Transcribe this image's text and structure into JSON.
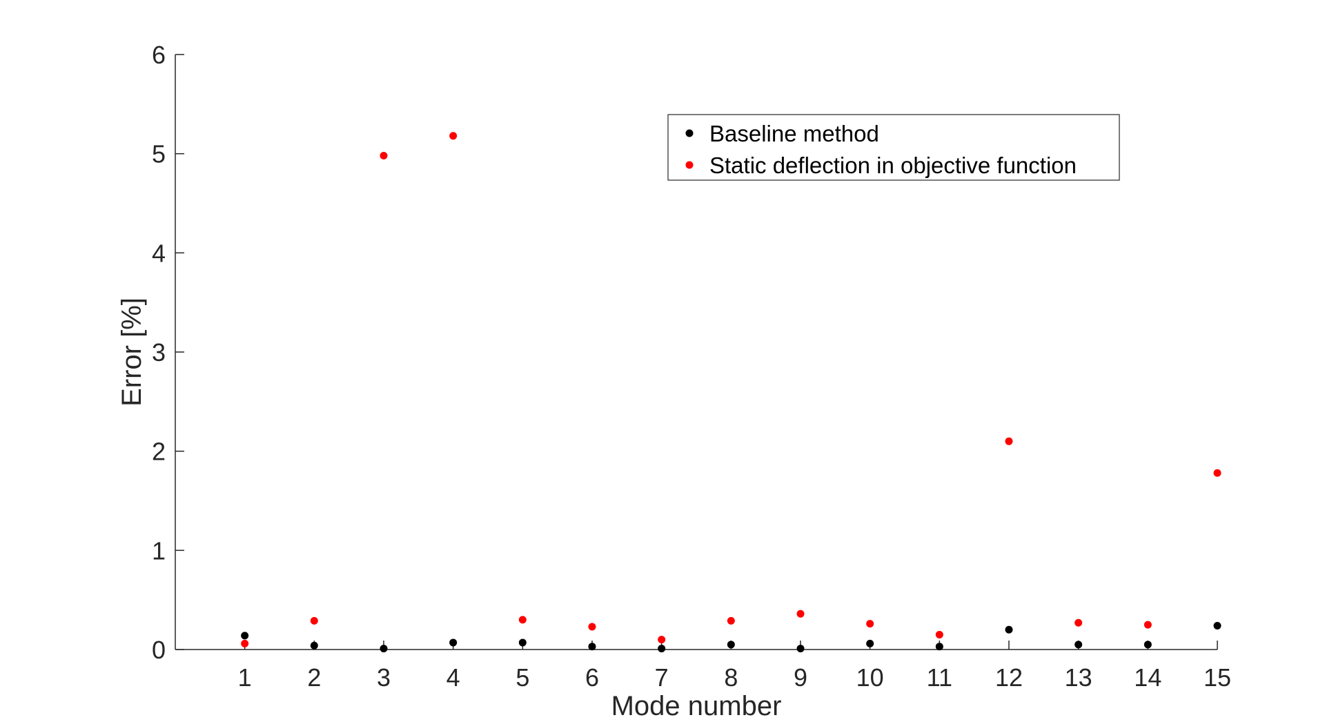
{
  "chart_data": {
    "type": "scatter",
    "xlabel": "Mode number",
    "ylabel": "Error [%]",
    "xlim": [
      0,
      15
    ],
    "ylim": [
      0,
      6
    ],
    "xticks": [
      1,
      2,
      3,
      4,
      5,
      6,
      7,
      8,
      9,
      10,
      11,
      12,
      13,
      14,
      15
    ],
    "yticks": [
      0,
      1,
      2,
      3,
      4,
      5,
      6
    ],
    "legend_position": "top-right",
    "series": [
      {
        "name": "Baseline method",
        "color": "#000000",
        "x": [
          1,
          2,
          3,
          4,
          5,
          6,
          7,
          8,
          9,
          10,
          11,
          12,
          13,
          14,
          15
        ],
        "y": [
          0.14,
          0.04,
          0.01,
          0.07,
          0.07,
          0.03,
          0.01,
          0.05,
          0.01,
          0.06,
          0.03,
          0.2,
          0.05,
          0.05,
          0.24
        ]
      },
      {
        "name": "Static deflection in objective function",
        "color": "#ff0000",
        "x": [
          1,
          2,
          3,
          4,
          5,
          6,
          7,
          8,
          9,
          10,
          11,
          12,
          13,
          14,
          15
        ],
        "y": [
          0.06,
          0.29,
          4.98,
          5.18,
          0.3,
          0.23,
          0.1,
          0.29,
          0.36,
          0.26,
          0.15,
          2.1,
          0.27,
          0.25,
          1.78
        ]
      }
    ]
  }
}
